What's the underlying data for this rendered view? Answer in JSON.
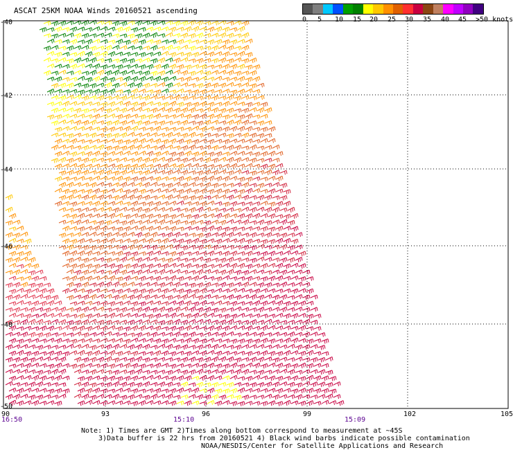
{
  "title": "ASCAT 25KM NOAA Winds 20160521 ascending",
  "legend": {
    "labels": [
      "0",
      "5",
      "10",
      "15",
      "20",
      "25",
      "30",
      "35",
      "40",
      "45",
      ">50 knots"
    ],
    "colors": [
      "#555555",
      "#7f7f7f",
      "#00c8ff",
      "#0050ff",
      "#00a000",
      "#008000",
      "#ffff00",
      "#ffc800",
      "#ff9000",
      "#e06000",
      "#ff3030",
      "#c80040",
      "#8b4513",
      "#c08060",
      "#ff00ff",
      "#c000ff",
      "#9000c0",
      "#400080"
    ]
  },
  "map": {
    "lon_ticks": [
      "90",
      "93",
      "96",
      "99",
      "102",
      "105"
    ],
    "lat_ticks": [
      "-40",
      "-42",
      "-44",
      "-46",
      "-48",
      "-50"
    ],
    "times": [
      "16:50",
      "15:10",
      "15:09"
    ]
  },
  "notes": {
    "line1": "Note: 1) Times are GMT 2)Times along bottom correspond to measurement at ~45S",
    "line2": "3)Data buffer is 22 hrs from 20160521 4) Black wind barbs indicate possible contamination",
    "line3": "NOAA/NESDIS/Center for Satellite Applications and Research"
  }
}
